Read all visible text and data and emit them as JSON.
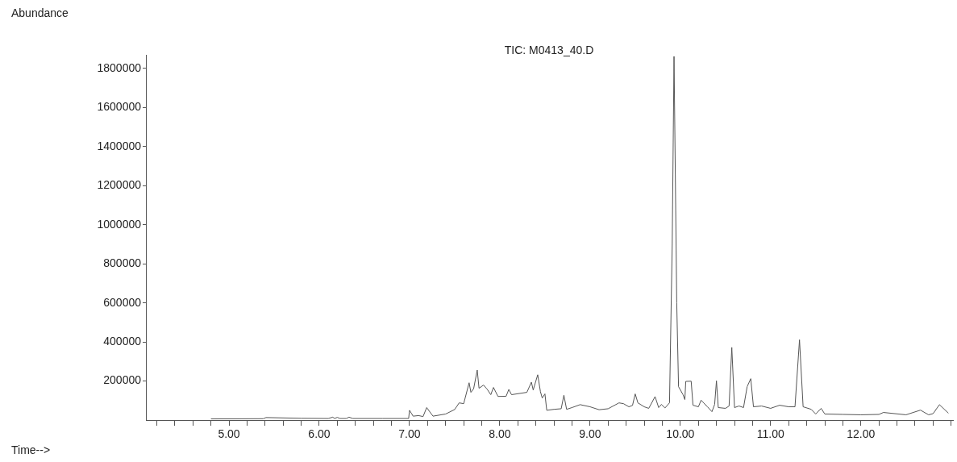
{
  "chart_data": {
    "type": "line",
    "title": "TIC: M0413_40.D",
    "xlabel": "Time-->",
    "ylabel": "Abundance",
    "xlim": [
      4.08,
      13.02
    ],
    "ylim": [
      0,
      1870000
    ],
    "xticks": [
      {
        "value": 4.2,
        "label": null
      },
      {
        "value": 4.4,
        "label": null
      },
      {
        "value": 4.6,
        "label": null
      },
      {
        "value": 4.8,
        "label": null
      },
      {
        "value": 5,
        "label": "5.00"
      },
      {
        "value": 5.2,
        "label": null
      },
      {
        "value": 5.4,
        "label": null
      },
      {
        "value": 5.6,
        "label": null
      },
      {
        "value": 5.8,
        "label": null
      },
      {
        "value": 6,
        "label": "6.00"
      },
      {
        "value": 6.2,
        "label": null
      },
      {
        "value": 6.4,
        "label": null
      },
      {
        "value": 6.6,
        "label": null
      },
      {
        "value": 6.8,
        "label": null
      },
      {
        "value": 7,
        "label": "7.00"
      },
      {
        "value": 7.2,
        "label": null
      },
      {
        "value": 7.4,
        "label": null
      },
      {
        "value": 7.6,
        "label": null
      },
      {
        "value": 7.8,
        "label": null
      },
      {
        "value": 8,
        "label": "8.00"
      },
      {
        "value": 8.2,
        "label": null
      },
      {
        "value": 8.4,
        "label": null
      },
      {
        "value": 8.6,
        "label": null
      },
      {
        "value": 8.8,
        "label": null
      },
      {
        "value": 9,
        "label": "9.00"
      },
      {
        "value": 9.2,
        "label": null
      },
      {
        "value": 9.4,
        "label": null
      },
      {
        "value": 9.6,
        "label": null
      },
      {
        "value": 9.8,
        "label": null
      },
      {
        "value": 10,
        "label": "10.00"
      },
      {
        "value": 10.2,
        "label": null
      },
      {
        "value": 10.4,
        "label": null
      },
      {
        "value": 10.6,
        "label": null
      },
      {
        "value": 10.8,
        "label": null
      },
      {
        "value": 11,
        "label": "11.00"
      },
      {
        "value": 11.2,
        "label": null
      },
      {
        "value": 11.4,
        "label": null
      },
      {
        "value": 11.6,
        "label": null
      },
      {
        "value": 11.8,
        "label": null
      },
      {
        "value": 12,
        "label": "12.00"
      },
      {
        "value": 12.2,
        "label": null
      },
      {
        "value": 12.4,
        "label": null
      },
      {
        "value": 12.6,
        "label": null
      },
      {
        "value": 12.8,
        "label": null
      },
      {
        "value": 13,
        "label": null
      }
    ],
    "yticks": [
      200000,
      400000,
      600000,
      800000,
      1000000,
      1200000,
      1400000,
      1600000,
      1800000
    ],
    "grid": false,
    "legend": false,
    "marker": "none",
    "line_style": "solid",
    "series": [
      {
        "color": "#555555",
        "x": [
          4.8,
          5.38,
          5.41,
          5.8,
          6.1,
          6.15,
          6.17,
          6.2,
          6.23,
          6.3,
          6.33,
          6.37,
          6.7,
          6.99,
          7.0,
          7.04,
          7.1,
          7.15,
          7.19,
          7.26,
          7.4,
          7.5,
          7.55,
          7.6,
          7.66,
          7.68,
          7.71,
          7.75,
          7.77,
          7.82,
          7.86,
          7.9,
          7.93,
          7.98,
          8.07,
          8.1,
          8.13,
          8.3,
          8.35,
          8.37,
          8.42,
          8.45,
          8.47,
          8.5,
          8.52,
          8.6,
          8.68,
          8.71,
          8.74,
          8.8,
          8.89,
          9.0,
          9.1,
          9.2,
          9.32,
          9.37,
          9.43,
          9.47,
          9.5,
          9.53,
          9.6,
          9.65,
          9.72,
          9.76,
          9.79,
          9.83,
          9.88,
          9.91,
          9.93,
          9.96,
          9.98,
          10.03,
          10.05,
          10.06,
          10.12,
          10.14,
          10.2,
          10.23,
          10.3,
          10.35,
          10.38,
          10.4,
          10.42,
          10.5,
          10.54,
          10.57,
          10.6,
          10.65,
          10.7,
          10.74,
          10.78,
          10.81,
          10.9,
          11.0,
          11.1,
          11.2,
          11.27,
          11.32,
          11.36,
          11.45,
          11.5,
          11.56,
          11.6,
          11.8,
          12.0,
          12.2,
          12.25,
          12.5,
          12.66,
          12.75,
          12.8,
          12.87,
          12.97
        ],
        "values": [
          6000,
          7000,
          13000,
          9000,
          8000,
          15000,
          8000,
          14000,
          8000,
          8000,
          15000,
          8000,
          8000,
          8000,
          50000,
          20000,
          23000,
          18000,
          64000,
          20000,
          31000,
          54000,
          88000,
          84000,
          191000,
          142000,
          160000,
          256000,
          163000,
          179000,
          158000,
          130000,
          167000,
          121000,
          122000,
          157000,
          130000,
          142000,
          194000,
          154000,
          232000,
          146000,
          113000,
          134000,
          50000,
          55000,
          58000,
          127000,
          55000,
          64000,
          79000,
          68000,
          53000,
          58000,
          88000,
          84000,
          68000,
          75000,
          134000,
          88000,
          68000,
          60000,
          120000,
          64000,
          80000,
          62000,
          88000,
          900000,
          1862000,
          600000,
          171000,
          130000,
          105000,
          198000,
          199000,
          76000,
          68000,
          102000,
          68000,
          43000,
          80000,
          201000,
          64000,
          60000,
          72000,
          372000,
          64000,
          72000,
          64000,
          171000,
          212000,
          68000,
          72000,
          60000,
          76000,
          68000,
          68000,
          411000,
          68000,
          55000,
          31000,
          60000,
          31000,
          29000,
          27000,
          29000,
          39000,
          27000,
          51000,
          27000,
          33000,
          79000,
          35000
        ]
      }
    ]
  }
}
